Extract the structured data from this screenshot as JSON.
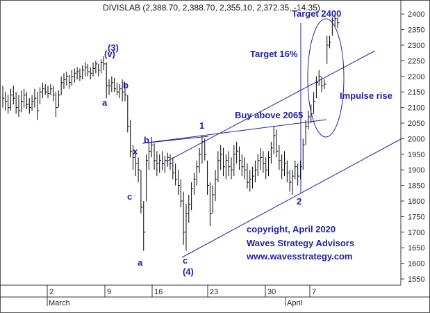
{
  "chart_data": {
    "type": "ohlc",
    "title": "DIVISLAB (2,388.70, 2,388.70, 2,355.10, 2,372.35, -14.35)",
    "y_ticks": [
      "2400",
      "2350",
      "2300",
      "2250",
      "2200",
      "2150",
      "2100",
      "2050",
      "2000",
      "1950",
      "1900",
      "1850",
      "1800",
      "1750",
      "1700",
      "1650",
      "1600",
      "1550"
    ],
    "ylim": [
      1530,
      2445
    ],
    "x_ticks": [
      "2",
      "9",
      "16",
      "23",
      "30",
      "7"
    ],
    "x_months": [
      "March",
      "April"
    ],
    "grid": false,
    "colors": {
      "bars": "#000000",
      "lines": "#1f1fa8",
      "text": "#1f1fa8"
    },
    "bars": [
      {
        "h": 2170,
        "l": 2100,
        "c": 2130
      },
      {
        "h": 2150,
        "l": 2090,
        "c": 2120
      },
      {
        "h": 2140,
        "l": 2080,
        "c": 2100
      },
      {
        "h": 2160,
        "l": 2090,
        "c": 2140
      },
      {
        "h": 2170,
        "l": 2110,
        "c": 2130
      },
      {
        "h": 2150,
        "l": 2080,
        "c": 2100
      },
      {
        "h": 2140,
        "l": 2070,
        "c": 2090
      },
      {
        "h": 2155,
        "l": 2085,
        "c": 2120
      },
      {
        "h": 2160,
        "l": 2100,
        "c": 2140
      },
      {
        "h": 2150,
        "l": 2095,
        "c": 2110
      },
      {
        "h": 2130,
        "l": 2080,
        "c": 2100
      },
      {
        "h": 2140,
        "l": 2090,
        "c": 2120
      },
      {
        "h": 2160,
        "l": 2100,
        "c": 2130
      },
      {
        "h": 2150,
        "l": 2060,
        "c": 2090
      },
      {
        "h": 2165,
        "l": 2110,
        "c": 2150
      },
      {
        "h": 2180,
        "l": 2130,
        "c": 2160
      },
      {
        "h": 2175,
        "l": 2140,
        "c": 2150
      },
      {
        "h": 2170,
        "l": 2130,
        "c": 2145
      },
      {
        "h": 2175,
        "l": 2140,
        "c": 2160
      },
      {
        "h": 2170,
        "l": 2120,
        "c": 2140
      },
      {
        "h": 2150,
        "l": 2070,
        "c": 2100
      },
      {
        "h": 2155,
        "l": 2100,
        "c": 2140
      },
      {
        "h": 2200,
        "l": 2140,
        "c": 2180
      },
      {
        "h": 2210,
        "l": 2160,
        "c": 2190
      },
      {
        "h": 2215,
        "l": 2170,
        "c": 2200
      },
      {
        "h": 2205,
        "l": 2160,
        "c": 2180
      },
      {
        "h": 2220,
        "l": 2170,
        "c": 2200
      },
      {
        "h": 2225,
        "l": 2180,
        "c": 2210
      },
      {
        "h": 2230,
        "l": 2190,
        "c": 2215
      },
      {
        "h": 2225,
        "l": 2185,
        "c": 2200
      },
      {
        "h": 2235,
        "l": 2190,
        "c": 2220
      },
      {
        "h": 2245,
        "l": 2200,
        "c": 2230
      },
      {
        "h": 2240,
        "l": 2200,
        "c": 2215
      },
      {
        "h": 2230,
        "l": 2190,
        "c": 2210
      },
      {
        "h": 2245,
        "l": 2200,
        "c": 2225
      },
      {
        "h": 2250,
        "l": 2210,
        "c": 2240
      },
      {
        "h": 2240,
        "l": 2200,
        "c": 2220
      },
      {
        "h": 2255,
        "l": 2210,
        "c": 2245
      },
      {
        "h": 2265,
        "l": 2220,
        "c": 2240
      },
      {
        "h": 2245,
        "l": 2130,
        "c": 2170
      },
      {
        "h": 2190,
        "l": 2140,
        "c": 2170
      },
      {
        "h": 2200,
        "l": 2150,
        "c": 2180
      },
      {
        "h": 2195,
        "l": 2150,
        "c": 2160
      },
      {
        "h": 2180,
        "l": 2140,
        "c": 2150
      },
      {
        "h": 2175,
        "l": 2130,
        "c": 2160
      },
      {
        "h": 2190,
        "l": 2120,
        "c": 2150
      },
      {
        "h": 2180,
        "l": 2120,
        "c": 2140
      },
      {
        "h": 2140,
        "l": 2020,
        "c": 2040
      },
      {
        "h": 2060,
        "l": 1940,
        "c": 1960
      },
      {
        "h": 1980,
        "l": 1900,
        "c": 1940
      },
      {
        "h": 1960,
        "l": 1880,
        "c": 1920
      },
      {
        "h": 1940,
        "l": 1860,
        "c": 1900
      },
      {
        "h": 1900,
        "l": 1760,
        "c": 1780
      },
      {
        "h": 1800,
        "l": 1640,
        "c": 1700
      },
      {
        "h": 1950,
        "l": 1800,
        "c": 1930
      },
      {
        "h": 1990,
        "l": 1900,
        "c": 1960
      },
      {
        "h": 2005,
        "l": 1940,
        "c": 1980
      },
      {
        "h": 1985,
        "l": 1900,
        "c": 1930
      },
      {
        "h": 1960,
        "l": 1880,
        "c": 1920
      },
      {
        "h": 1950,
        "l": 1890,
        "c": 1930
      },
      {
        "h": 1960,
        "l": 1900,
        "c": 1920
      },
      {
        "h": 1945,
        "l": 1890,
        "c": 1930
      },
      {
        "h": 1955,
        "l": 1910,
        "c": 1940
      },
      {
        "h": 1950,
        "l": 1900,
        "c": 1920
      },
      {
        "h": 1940,
        "l": 1870,
        "c": 1890
      },
      {
        "h": 1920,
        "l": 1850,
        "c": 1870
      },
      {
        "h": 1900,
        "l": 1820,
        "c": 1850
      },
      {
        "h": 1870,
        "l": 1780,
        "c": 1800
      },
      {
        "h": 1830,
        "l": 1660,
        "c": 1700
      },
      {
        "h": 1790,
        "l": 1640,
        "c": 1760
      },
      {
        "h": 1820,
        "l": 1730,
        "c": 1790
      },
      {
        "h": 1860,
        "l": 1770,
        "c": 1840
      },
      {
        "h": 1890,
        "l": 1820,
        "c": 1870
      },
      {
        "h": 1930,
        "l": 1850,
        "c": 1910
      },
      {
        "h": 1970,
        "l": 1890,
        "c": 1950
      },
      {
        "h": 2010,
        "l": 1920,
        "c": 1990
      },
      {
        "h": 2000,
        "l": 1930,
        "c": 1950
      },
      {
        "h": 1930,
        "l": 1820,
        "c": 1850
      },
      {
        "h": 1860,
        "l": 1720,
        "c": 1760
      },
      {
        "h": 1850,
        "l": 1760,
        "c": 1820
      },
      {
        "h": 1900,
        "l": 1800,
        "c": 1870
      },
      {
        "h": 1960,
        "l": 1860,
        "c": 1930
      },
      {
        "h": 1980,
        "l": 1900,
        "c": 1950
      },
      {
        "h": 1970,
        "l": 1880,
        "c": 1910
      },
      {
        "h": 1950,
        "l": 1870,
        "c": 1930
      },
      {
        "h": 1960,
        "l": 1880,
        "c": 1910
      },
      {
        "h": 1940,
        "l": 1870,
        "c": 1900
      },
      {
        "h": 1980,
        "l": 1880,
        "c": 1950
      },
      {
        "h": 1990,
        "l": 1920,
        "c": 1960
      },
      {
        "h": 1975,
        "l": 1900,
        "c": 1930
      },
      {
        "h": 1950,
        "l": 1880,
        "c": 1910
      },
      {
        "h": 1940,
        "l": 1870,
        "c": 1900
      },
      {
        "h": 1920,
        "l": 1840,
        "c": 1860
      },
      {
        "h": 1900,
        "l": 1830,
        "c": 1870
      },
      {
        "h": 1910,
        "l": 1840,
        "c": 1880
      },
      {
        "h": 1930,
        "l": 1860,
        "c": 1900
      },
      {
        "h": 1950,
        "l": 1880,
        "c": 1930
      },
      {
        "h": 1970,
        "l": 1900,
        "c": 1940
      },
      {
        "h": 1960,
        "l": 1890,
        "c": 1920
      },
      {
        "h": 1940,
        "l": 1870,
        "c": 1900
      },
      {
        "h": 1960,
        "l": 1880,
        "c": 1940
      },
      {
        "h": 1990,
        "l": 1920,
        "c": 1970
      },
      {
        "h": 2040,
        "l": 1950,
        "c": 2010
      },
      {
        "h": 2030,
        "l": 1940,
        "c": 1960
      },
      {
        "h": 1980,
        "l": 1900,
        "c": 1930
      },
      {
        "h": 1950,
        "l": 1870,
        "c": 1900
      },
      {
        "h": 1960,
        "l": 1880,
        "c": 1920
      },
      {
        "h": 1930,
        "l": 1860,
        "c": 1890
      },
      {
        "h": 1900,
        "l": 1830,
        "c": 1860
      },
      {
        "h": 1900,
        "l": 1820,
        "c": 1880
      },
      {
        "h": 1930,
        "l": 1870,
        "c": 1910
      },
      {
        "h": 1920,
        "l": 1850,
        "c": 1880
      },
      {
        "h": 1930,
        "l": 1870,
        "c": 1910
      },
      {
        "h": 2000,
        "l": 1900,
        "c": 1980
      },
      {
        "h": 2060,
        "l": 1980,
        "c": 2040
      },
      {
        "h": 2090,
        "l": 2030,
        "c": 2070
      },
      {
        "h": 2110,
        "l": 2050,
        "c": 2080
      },
      {
        "h": 2150,
        "l": 2080,
        "c": 2120
      },
      {
        "h": 2200,
        "l": 2130,
        "c": 2180
      },
      {
        "h": 2220,
        "l": 2170,
        "c": 2200
      },
      {
        "h": 2200,
        "l": 2150,
        "c": 2170
      },
      {
        "h": 2190,
        "l": 2160,
        "c": 2175
      },
      {
        "h": 2330,
        "l": 2240,
        "c": 2300
      },
      {
        "h": 2330,
        "l": 2290,
        "c": 2310
      },
      {
        "h": 2390,
        "l": 2330,
        "c": 2380
      },
      {
        "h": 2400,
        "l": 2360,
        "c": 2385
      },
      {
        "h": 2389,
        "l": 2355,
        "c": 2372
      }
    ],
    "annotations": [
      "(3)",
      "(v)",
      "b",
      "a",
      "x",
      "c",
      "b",
      "a",
      "c",
      "(4)",
      "1",
      "2",
      "Target 2400",
      "Target 16%",
      "Buy above 2065",
      "Impulse rise",
      "copyright, April 2020",
      "Waves Strategy Advisors",
      "www.wavesstrategy.com"
    ],
    "buy_level": 2065
  }
}
